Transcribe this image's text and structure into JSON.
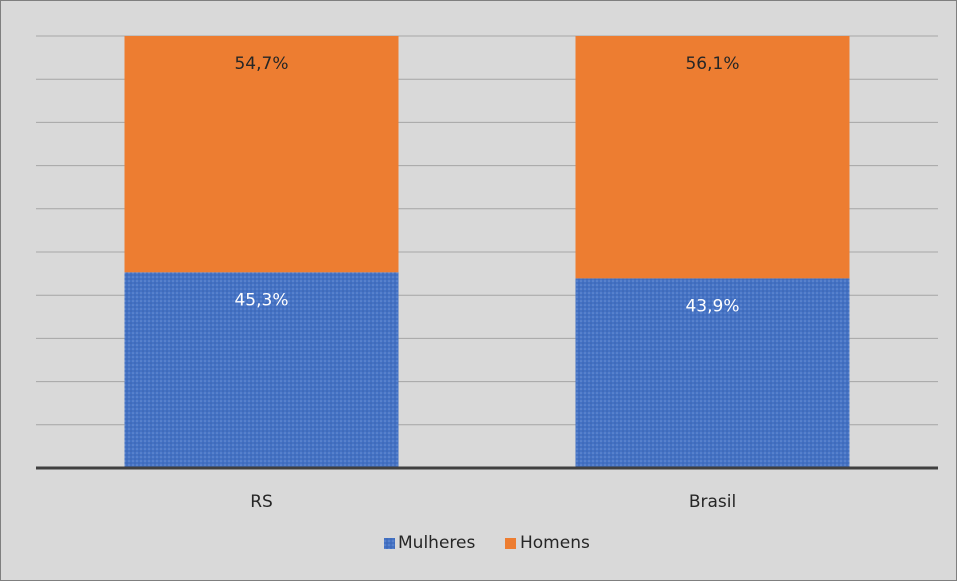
{
  "chart_data": {
    "type": "bar",
    "stacked": true,
    "percent_stacked": true,
    "categories": [
      "RS",
      "Brasil"
    ],
    "series": [
      {
        "name": "Mulheres",
        "values": [
          45.3,
          43.9
        ],
        "labels": [
          "45,3%",
          "43,9%"
        ],
        "color": "#4472C4",
        "pattern": "dotted"
      },
      {
        "name": "Homens",
        "values": [
          54.7,
          56.1
        ],
        "labels": [
          "54,7%",
          "56,1%"
        ],
        "color": "#ED7D31"
      }
    ],
    "ylim": [
      0,
      100
    ],
    "y_axis_visible": false,
    "grid": true,
    "legend": "bottom",
    "background": "#D9D9D9",
    "border_color": "#7F7F7F",
    "gridline_color": "#A6A6A6",
    "axis_color": "#404040"
  }
}
